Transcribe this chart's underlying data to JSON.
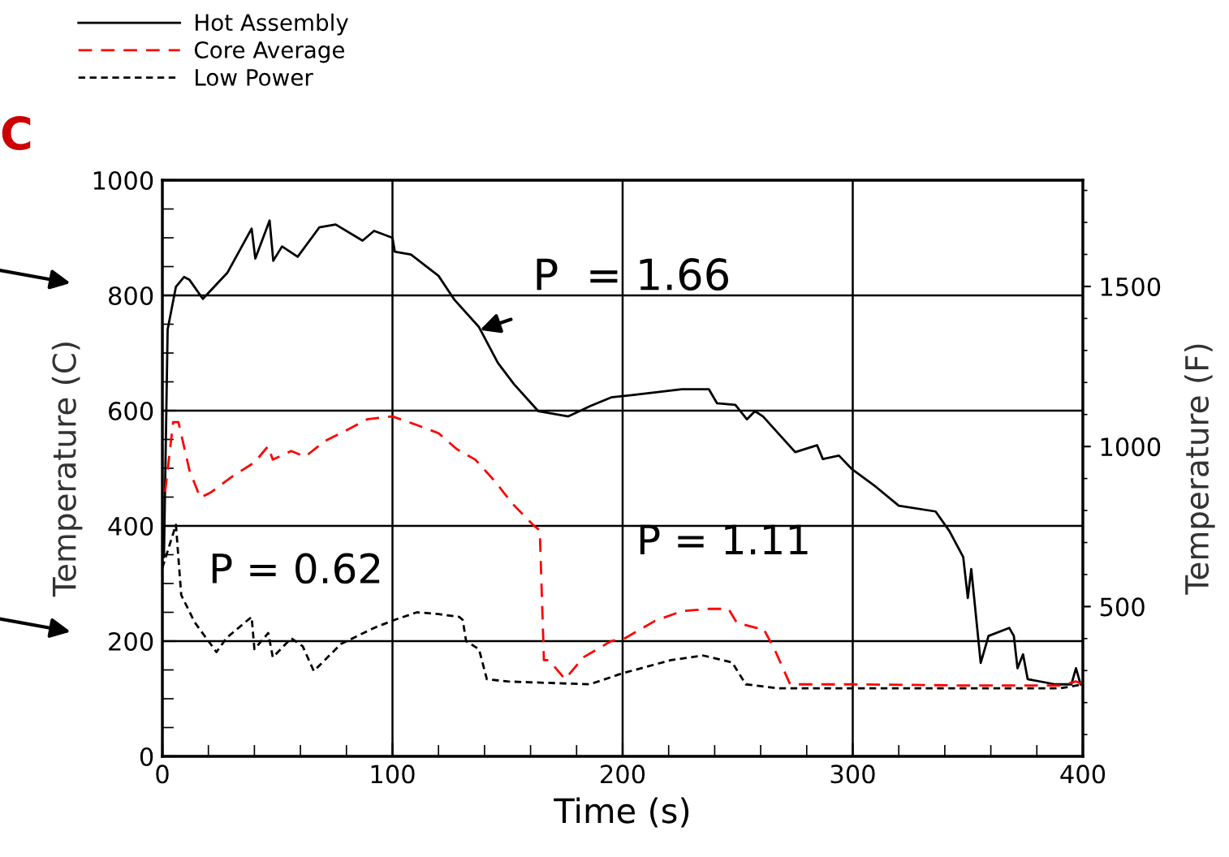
{
  "chart_data": {
    "type": "line",
    "xlabel": "Time (s)",
    "ylabel": "Temperature (C)",
    "y2label": "Temperature (F)",
    "xlim": [
      0,
      400
    ],
    "ylim": [
      0,
      1000
    ],
    "y2lim": [
      32,
      1832
    ],
    "xticks": [
      0,
      {
        "value": 20,
        "label": null
      },
      {
        "value": 40,
        "label": null
      },
      {
        "value": 60,
        "label": null
      },
      {
        "value": 80,
        "label": null
      },
      100,
      {
        "value": 120,
        "label": null
      },
      {
        "value": 140,
        "label": null
      },
      {
        "value": 160,
        "label": null
      },
      {
        "value": 180,
        "label": null
      },
      200,
      {
        "value": 220,
        "label": null
      },
      {
        "value": 240,
        "label": null
      },
      {
        "value": 260,
        "label": null
      },
      {
        "value": 280,
        "label": null
      },
      300,
      {
        "value": 320,
        "label": null
      },
      {
        "value": 340,
        "label": null
      },
      {
        "value": 360,
        "label": null
      },
      {
        "value": 380,
        "label": null
      },
      400
    ],
    "yticks": [
      0,
      {
        "value": 50,
        "label": null
      },
      {
        "value": 100,
        "label": null
      },
      {
        "value": 150,
        "label": null
      },
      200,
      {
        "value": 250,
        "label": null
      },
      {
        "value": 300,
        "label": null
      },
      {
        "value": 350,
        "label": null
      },
      400,
      {
        "value": 450,
        "label": null
      },
      {
        "value": 500,
        "label": null
      },
      {
        "value": 550,
        "label": null
      },
      600,
      {
        "value": 650,
        "label": null
      },
      {
        "value": 700,
        "label": null
      },
      {
        "value": 750,
        "label": null
      },
      800,
      {
        "value": 850,
        "label": null
      },
      {
        "value": 900,
        "label": null
      },
      {
        "value": 950,
        "label": null
      },
      1000
    ],
    "y2ticks": [
      {
        "value": 100,
        "label": null
      },
      {
        "value": 200,
        "label": null
      },
      {
        "value": 300,
        "label": null
      },
      {
        "value": 400,
        "label": null
      },
      500,
      {
        "value": 600,
        "label": null
      },
      {
        "value": 700,
        "label": null
      },
      {
        "value": 800,
        "label": null
      },
      {
        "value": 900,
        "label": null
      },
      1000,
      {
        "value": 1100,
        "label": null
      },
      {
        "value": 1200,
        "label": null
      },
      {
        "value": 1300,
        "label": null
      },
      {
        "value": 1400,
        "label": null
      },
      1500,
      {
        "value": 1600,
        "label": null
      },
      {
        "value": 1700,
        "label": null
      },
      {
        "value": 1800,
        "label": null
      }
    ],
    "grid": true,
    "legend": "top left",
    "marker": "none",
    "series": [
      {
        "name": "Hot Assembly",
        "color": "#000000",
        "line_style": "solid",
        "x": [
          0.7,
          2.3,
          5.9,
          9.4,
          11.8,
          17.6,
          28.2,
          38.8,
          40.4,
          46.6,
          48.2,
          52,
          58.8,
          68.2,
          75.3,
          87,
          92,
          100,
          101,
          108,
          120,
          127,
          137.6,
          145.8,
          152.8,
          163.4,
          176.4,
          186,
          195,
          204,
          225.7,
          237.5,
          241,
          249,
          254,
          257.5,
          261,
          275,
          284.5,
          287,
          294,
          299.8,
          310,
          320,
          336,
          342,
          348,
          350,
          351.5,
          355.6,
          359,
          368,
          370,
          371.6,
          374,
          376,
          388,
          395,
          397,
          399
        ],
        "values": [
          346,
          741,
          815,
          832,
          827,
          794,
          839,
          916,
          864,
          930,
          860,
          885,
          867,
          918,
          923,
          895,
          912,
          900,
          876,
          871,
          834,
          792,
          745,
          683,
          646,
          599,
          590,
          608,
          623,
          627,
          637,
          637,
          613,
          610,
          585,
          599,
          590,
          528,
          540,
          516,
          522,
          498,
          468,
          435,
          425,
          391,
          346,
          275,
          325,
          162,
          209,
          223,
          209,
          153,
          177,
          134,
          125,
          125,
          153,
          125
        ]
      },
      {
        "name": "Core Average",
        "color": "#ff0000",
        "line_style": "dashed",
        "x": [
          1.2,
          4.7,
          7,
          11.8,
          16.5,
          21,
          30.5,
          40,
          45.9,
          48,
          56,
          62,
          70.5,
          80,
          89,
          100,
          110.6,
          120,
          128,
          136,
          144.6,
          152,
          161,
          164,
          165.8,
          168,
          175,
          183,
          195,
          201,
          214,
          225.7,
          237.5,
          246,
          249.6,
          258,
          261,
          266,
          272.8,
          300,
          350,
          390,
          397,
          400
        ],
        "values": [
          459,
          580,
          580,
          496,
          449,
          458,
          486,
          510,
          538,
          515,
          530,
          520,
          547,
          566,
          585,
          590,
          575,
          561,
          533,
          515,
          477,
          439,
          402,
          392,
          167,
          167,
          134,
          172,
          200,
          205,
          235,
          252,
          256,
          256,
          232,
          223,
          223,
          186,
          125,
          125,
          123,
          123,
          130,
          125
        ]
      },
      {
        "name": "Low Power",
        "color": "#000000",
        "line_style": "dotted",
        "x": [
          0,
          5.9,
          8.2,
          14,
          23.5,
          28,
          38.8,
          40,
          46,
          48,
          56,
          61,
          65.8,
          77.6,
          92,
          101,
          110.6,
          120,
          129,
          130.5,
          132,
          137.6,
          141,
          150,
          185.7,
          199.8,
          221,
          235,
          247.6,
          253.5,
          268,
          330,
          390,
          400
        ],
        "values": [
          327,
          402,
          280,
          233,
          181,
          206,
          242,
          186,
          214,
          172,
          205,
          191,
          148,
          195,
          223,
          237,
          250,
          247,
          242,
          237,
          200,
          186,
          134,
          130,
          125,
          144,
          167,
          175,
          163,
          125,
          118,
          118,
          118,
          125
        ]
      }
    ],
    "annotations": [
      {
        "text": "P  = 1.66",
        "x": 138,
        "y": 740
      },
      "P = 1.11",
      "P = 0.62",
      "C"
    ]
  }
}
